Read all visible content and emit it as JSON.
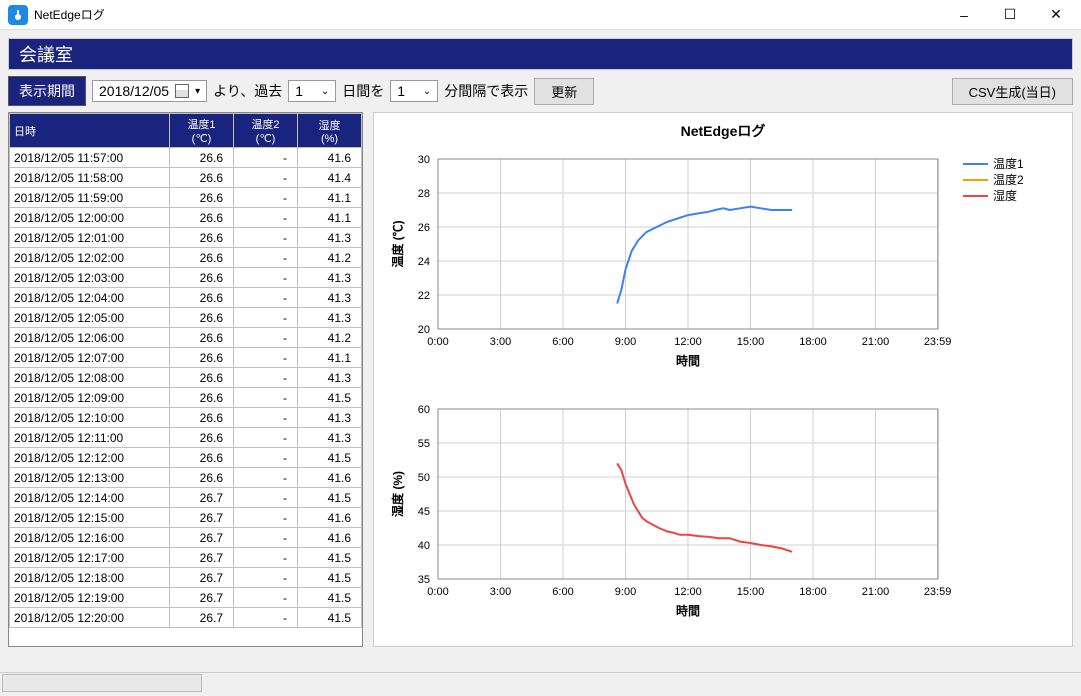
{
  "window": {
    "title": "NetEdgeログ"
  },
  "header": {
    "room_name": "会議室"
  },
  "toolbar": {
    "period_label": "表示期間",
    "date_value": "2018/12/05",
    "text1": "より、過去",
    "days_value": "1",
    "text2": "日間を",
    "interval_value": "1",
    "text3": "分間隔で表示",
    "update_btn": "更新",
    "csv_btn": "CSV生成(当日)"
  },
  "table": {
    "columns": [
      "日時",
      "温度1\n(℃)",
      "温度2\n(℃)",
      "湿度\n(%)"
    ],
    "rows": [
      [
        "2018/12/05 11:57:00",
        "26.6",
        "-",
        "41.6"
      ],
      [
        "2018/12/05 11:58:00",
        "26.6",
        "-",
        "41.4"
      ],
      [
        "2018/12/05 11:59:00",
        "26.6",
        "-",
        "41.1"
      ],
      [
        "2018/12/05 12:00:00",
        "26.6",
        "-",
        "41.1"
      ],
      [
        "2018/12/05 12:01:00",
        "26.6",
        "-",
        "41.3"
      ],
      [
        "2018/12/05 12:02:00",
        "26.6",
        "-",
        "41.2"
      ],
      [
        "2018/12/05 12:03:00",
        "26.6",
        "-",
        "41.3"
      ],
      [
        "2018/12/05 12:04:00",
        "26.6",
        "-",
        "41.3"
      ],
      [
        "2018/12/05 12:05:00",
        "26.6",
        "-",
        "41.3"
      ],
      [
        "2018/12/05 12:06:00",
        "26.6",
        "-",
        "41.2"
      ],
      [
        "2018/12/05 12:07:00",
        "26.6",
        "-",
        "41.1"
      ],
      [
        "2018/12/05 12:08:00",
        "26.6",
        "-",
        "41.3"
      ],
      [
        "2018/12/05 12:09:00",
        "26.6",
        "-",
        "41.5"
      ],
      [
        "2018/12/05 12:10:00",
        "26.6",
        "-",
        "41.3"
      ],
      [
        "2018/12/05 12:11:00",
        "26.6",
        "-",
        "41.3"
      ],
      [
        "2018/12/05 12:12:00",
        "26.6",
        "-",
        "41.5"
      ],
      [
        "2018/12/05 12:13:00",
        "26.6",
        "-",
        "41.6"
      ],
      [
        "2018/12/05 12:14:00",
        "26.7",
        "-",
        "41.5"
      ],
      [
        "2018/12/05 12:15:00",
        "26.7",
        "-",
        "41.6"
      ],
      [
        "2018/12/05 12:16:00",
        "26.7",
        "-",
        "41.6"
      ],
      [
        "2018/12/05 12:17:00",
        "26.7",
        "-",
        "41.5"
      ],
      [
        "2018/12/05 12:18:00",
        "26.7",
        "-",
        "41.5"
      ],
      [
        "2018/12/05 12:19:00",
        "26.7",
        "-",
        "41.5"
      ],
      [
        "2018/12/05 12:20:00",
        "26.7",
        "-",
        "41.5"
      ]
    ]
  },
  "chart": {
    "title": "NetEdgeログ",
    "xlabel": "時間",
    "legend": [
      "温度1",
      "温度2",
      "湿度"
    ],
    "legend_colors": [
      "#3b82f6",
      "#f59e0b",
      "#ef4444"
    ],
    "chart1": {
      "ylabel": "温度 (℃)",
      "ylim": [
        20,
        30
      ],
      "ytick_step": 2,
      "xticks": [
        "0:00",
        "3:00",
        "6:00",
        "9:00",
        "12:00",
        "15:00",
        "18:00",
        "21:00",
        "23:59"
      ],
      "grid_color": "#d0d0d0",
      "series": [
        {
          "name": "温度1",
          "color": "#3b82f6",
          "width": 2,
          "points": [
            [
              8.6,
              21.5
            ],
            [
              8.8,
              22.3
            ],
            [
              9.0,
              23.5
            ],
            [
              9.3,
              24.6
            ],
            [
              9.6,
              25.2
            ],
            [
              10.0,
              25.7
            ],
            [
              10.5,
              26.0
            ],
            [
              11.0,
              26.3
            ],
            [
              11.5,
              26.5
            ],
            [
              12.0,
              26.7
            ],
            [
              12.5,
              26.8
            ],
            [
              13.0,
              26.9
            ],
            [
              13.3,
              27.0
            ],
            [
              13.7,
              27.1
            ],
            [
              14.0,
              27.0
            ],
            [
              14.5,
              27.1
            ],
            [
              15.0,
              27.2
            ],
            [
              15.5,
              27.1
            ],
            [
              16.0,
              27.0
            ],
            [
              16.5,
              27.0
            ],
            [
              17.0,
              27.0
            ]
          ]
        }
      ]
    },
    "chart2": {
      "ylabel": "湿度 (%)",
      "ylim": [
        35,
        60
      ],
      "ytick_step": 5,
      "xticks": [
        "0:00",
        "3:00",
        "6:00",
        "9:00",
        "12:00",
        "15:00",
        "18:00",
        "21:00",
        "23:59"
      ],
      "grid_color": "#d0d0d0",
      "series": [
        {
          "name": "湿度",
          "color": "#ef4444",
          "width": 2,
          "points": [
            [
              8.6,
              52.0
            ],
            [
              8.8,
              51.0
            ],
            [
              9.0,
              49.0
            ],
            [
              9.2,
              47.5
            ],
            [
              9.4,
              46.0
            ],
            [
              9.6,
              45.0
            ],
            [
              9.8,
              44.0
            ],
            [
              10.0,
              43.5
            ],
            [
              10.3,
              43.0
            ],
            [
              10.6,
              42.5
            ],
            [
              11.0,
              42.0
            ],
            [
              11.3,
              41.8
            ],
            [
              11.6,
              41.5
            ],
            [
              12.0,
              41.5
            ],
            [
              12.5,
              41.3
            ],
            [
              13.0,
              41.2
            ],
            [
              13.5,
              41.0
            ],
            [
              14.0,
              41.0
            ],
            [
              14.5,
              40.5
            ],
            [
              15.0,
              40.3
            ],
            [
              15.5,
              40.0
            ],
            [
              16.0,
              39.8
            ],
            [
              16.5,
              39.5
            ],
            [
              17.0,
              39.0
            ]
          ]
        }
      ]
    }
  }
}
